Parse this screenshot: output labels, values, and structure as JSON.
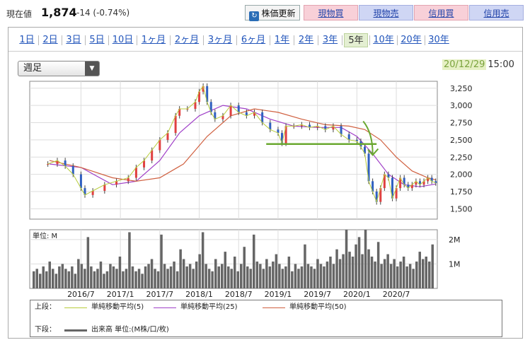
{
  "header": {
    "price_label": "現在値",
    "price_value": "1,874",
    "price_change": "-14 (-0.74%)",
    "buttons": {
      "refresh": "株価更新",
      "spot_buy": "現物買",
      "spot_sell": "現物売",
      "margin_buy": "信用買",
      "margin_sell": "信用売"
    }
  },
  "periods": [
    "1日",
    "2日",
    "3日",
    "5日",
    "10日",
    "1ヶ月",
    "2ヶ月",
    "3ヶ月",
    "6ヶ月",
    "1年",
    "2年",
    "3年",
    "5年",
    "10年",
    "20年",
    "30年"
  ],
  "active_period": "5年",
  "interval_select": "週足",
  "datetime": {
    "date": "20/12/29",
    "time": "15:00"
  },
  "colors": {
    "ma5": "#b8cc3c",
    "ma25": "#a040c8",
    "ma50": "#d06040",
    "volume": "#666666",
    "annotation": "#6aa830",
    "link": "#2255bb"
  },
  "legend": {
    "upper_label": "上段：",
    "ma5": "単純移動平均(5)",
    "ma25": "単純移動平均(25)",
    "ma50": "単純移動平均(50)",
    "lower_label": "下段：",
    "volume": "出来高 単位:(M株/口/枚)"
  },
  "chart_data": [
    {
      "type": "line",
      "ylabel": "",
      "ylim": [
        1350,
        3350
      ],
      "yticks": [
        "3,250",
        "3,000",
        "2,750",
        "2,500",
        "2,250",
        "2,000",
        "1,750",
        "1,500"
      ],
      "ytick_values": [
        3250,
        3000,
        2750,
        2500,
        2250,
        2000,
        1750,
        1500
      ],
      "series_price": {
        "x": [
          2016.08,
          2016.2,
          2016.3,
          2016.4,
          2016.5,
          2016.55,
          2016.65,
          2016.8,
          2016.95,
          2017.1,
          2017.2,
          2017.3,
          2017.4,
          2017.5,
          2017.6,
          2017.7,
          2017.75,
          2017.85,
          2017.95,
          2018.0,
          2018.05,
          2018.1,
          2018.15,
          2018.2,
          2018.3,
          2018.4,
          2018.5,
          2018.6,
          2018.7,
          2018.8,
          2018.9,
          2019.0,
          2019.05,
          2019.1,
          2019.2,
          2019.3,
          2019.4,
          2019.5,
          2019.6,
          2019.7,
          2019.8,
          2019.9,
          2020.0,
          2020.05,
          2020.1,
          2020.15,
          2020.2,
          2020.25,
          2020.3,
          2020.35,
          2020.4,
          2020.45,
          2020.5,
          2020.55,
          2020.6,
          2020.65,
          2020.7,
          2020.75,
          2020.8,
          2020.85,
          2020.9,
          2020.95,
          2021.0
        ],
        "y": [
          2150,
          2200,
          2120,
          2000,
          1800,
          1700,
          1760,
          1850,
          1900,
          1950,
          2100,
          2200,
          2350,
          2500,
          2600,
          2850,
          2950,
          2950,
          3050,
          3200,
          3280,
          3050,
          2900,
          2800,
          2850,
          3000,
          2900,
          2850,
          2900,
          2750,
          2650,
          2600,
          2450,
          2700,
          2700,
          2720,
          2680,
          2700,
          2650,
          2700,
          2580,
          2500,
          2480,
          2400,
          2300,
          1900,
          1750,
          1600,
          1800,
          2000,
          1950,
          1650,
          1800,
          1950,
          1850,
          1800,
          1850,
          1900,
          1850,
          1900,
          1950,
          1900,
          1874
        ]
      },
      "series": [
        {
          "name": "単純移動平均(25)",
          "x": [
            2016.1,
            2016.5,
            2016.9,
            2017.2,
            2017.5,
            2017.75,
            2018.0,
            2018.3,
            2018.6,
            2018.9,
            2019.2,
            2019.5,
            2019.8,
            2020.0,
            2020.2,
            2020.4,
            2020.6,
            2020.8,
            2021.0
          ],
          "y": [
            2150,
            2100,
            1850,
            1900,
            2200,
            2600,
            2850,
            3000,
            2950,
            2800,
            2700,
            2680,
            2680,
            2550,
            2300,
            2000,
            1850,
            1820,
            1860
          ]
        },
        {
          "name": "単純移動平均(50)",
          "x": [
            2016.1,
            2016.5,
            2016.9,
            2017.2,
            2017.5,
            2017.8,
            2018.1,
            2018.4,
            2018.7,
            2019.0,
            2019.3,
            2019.6,
            2019.9,
            2020.1,
            2020.3,
            2020.5,
            2020.7,
            2020.9,
            2021.0
          ],
          "y": [
            2200,
            2100,
            1950,
            1900,
            1950,
            2150,
            2550,
            2850,
            2950,
            2900,
            2800,
            2720,
            2700,
            2650,
            2500,
            2250,
            2050,
            1950,
            1920
          ]
        }
      ],
      "annotations": {
        "support_level": 2440,
        "arrow": "down"
      }
    },
    {
      "type": "bar",
      "ylabel": "単位: M",
      "yticks": [
        "2M",
        "1M"
      ],
      "ytick_values": [
        2,
        1
      ],
      "ylim": [
        0,
        2.4
      ],
      "values": [
        0.7,
        0.8,
        0.6,
        0.9,
        0.7,
        1.1,
        0.8,
        0.6,
        0.9,
        1.0,
        0.8,
        0.7,
        0.9,
        0.6,
        1.2,
        1.0,
        0.8,
        2.1,
        0.9,
        0.7,
        0.8,
        1.1,
        0.6,
        0.7,
        1.0,
        0.9,
        0.8,
        1.3,
        0.7,
        0.8,
        2.3,
        0.9,
        0.7,
        0.8,
        0.6,
        0.9,
        1.0,
        1.2,
        0.8,
        0.7,
        2.2,
        1.0,
        0.8,
        0.9,
        1.1,
        0.7,
        1.6,
        1.2,
        0.9,
        1.0,
        0.8,
        1.1,
        1.4,
        2.3,
        1.0,
        0.8,
        0.7,
        1.2,
        0.9,
        1.0,
        1.5,
        0.9,
        0.8,
        1.3,
        0.7,
        1.0,
        1.7,
        0.9,
        0.8,
        2.2,
        1.1,
        1.0,
        0.8,
        1.2,
        0.9,
        1.1,
        1.4,
        1.0,
        0.8,
        0.9,
        1.3,
        0.7,
        1.0,
        0.8,
        0.9,
        1.8,
        1.0,
        0.9,
        0.8,
        1.2,
        1.0,
        0.9,
        1.1,
        1.3,
        1.0,
        1.6,
        1.2,
        1.4,
        2.4,
        1.5,
        1.3,
        1.8,
        2.1,
        1.4,
        2.4,
        1.6,
        1.3,
        1.1,
        1.9,
        1.0,
        1.2,
        1.4,
        1.0,
        1.2,
        0.9,
        1.1,
        1.3,
        0.9,
        1.0,
        0.8,
        1.1,
        1.5,
        1.2,
        1.3,
        1.1,
        1.8
      ]
    }
  ],
  "xticks": [
    "2016/7",
    "2017/1",
    "2017/7",
    "2018/1",
    "2018/7",
    "2019/1",
    "2019/7",
    "2020/1",
    "2020/7"
  ],
  "xtick_values": [
    2016.5,
    2017.0,
    2017.5,
    2018.0,
    2018.5,
    2019.0,
    2019.5,
    2020.0,
    2020.5
  ]
}
